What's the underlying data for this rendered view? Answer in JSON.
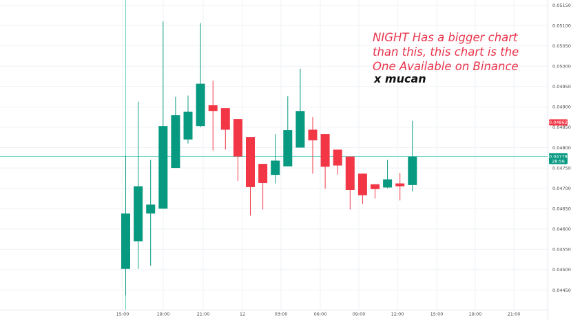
{
  "chart_data": {
    "type": "candlestick",
    "time_labels": [
      "15:00",
      "18:00",
      "21:00",
      "12",
      "03:00",
      "06:00",
      "09:00",
      "12:00",
      "15:00",
      "18:00",
      "21:00"
    ],
    "price_ticks": [
      "0.05150",
      "0.05100",
      "0.05050",
      "0.05000",
      "0.04950",
      "0.04900",
      "0.04850",
      "0.04800",
      "0.04750",
      "0.04700",
      "0.04650",
      "0.04600",
      "0.04550",
      "0.04500",
      "0.04450"
    ],
    "ylim": [
      0.04416,
      0.05164
    ],
    "candles": [
      {
        "o": 0.04502,
        "h": 0.0478,
        "l": 0.04437,
        "c": 0.04638
      },
      {
        "o": 0.0457,
        "h": 0.04913,
        "l": 0.04502,
        "c": 0.04705
      },
      {
        "o": 0.04638,
        "h": 0.0477,
        "l": 0.0451,
        "c": 0.0466
      },
      {
        "o": 0.0465,
        "h": 0.0511,
        "l": 0.0465,
        "c": 0.04853
      },
      {
        "o": 0.0475,
        "h": 0.04925,
        "l": 0.0475,
        "c": 0.0488
      },
      {
        "o": 0.0482,
        "h": 0.04928,
        "l": 0.0481,
        "c": 0.04888
      },
      {
        "o": 0.04853,
        "h": 0.05106,
        "l": 0.0485,
        "c": 0.04957
      },
      {
        "o": 0.04904,
        "h": 0.04964,
        "l": 0.04793,
        "c": 0.0489
      },
      {
        "o": 0.04897,
        "h": 0.04897,
        "l": 0.04795,
        "c": 0.04844
      },
      {
        "o": 0.0487,
        "h": 0.0487,
        "l": 0.04718,
        "c": 0.04778
      },
      {
        "o": 0.04826,
        "h": 0.04826,
        "l": 0.04633,
        "c": 0.04703
      },
      {
        "o": 0.0476,
        "h": 0.0476,
        "l": 0.04648,
        "c": 0.04713
      },
      {
        "o": 0.04733,
        "h": 0.04833,
        "l": 0.04712,
        "c": 0.04768
      },
      {
        "o": 0.04754,
        "h": 0.04926,
        "l": 0.04754,
        "c": 0.04843
      },
      {
        "o": 0.048,
        "h": 0.04994,
        "l": 0.048,
        "c": 0.0489
      },
      {
        "o": 0.04844,
        "h": 0.04875,
        "l": 0.04736,
        "c": 0.04818
      },
      {
        "o": 0.04833,
        "h": 0.04833,
        "l": 0.04699,
        "c": 0.04753
      },
      {
        "o": 0.04795,
        "h": 0.04795,
        "l": 0.04734,
        "c": 0.04756
      },
      {
        "o": 0.04778,
        "h": 0.04778,
        "l": 0.04648,
        "c": 0.04696
      },
      {
        "o": 0.04736,
        "h": 0.04736,
        "l": 0.04662,
        "c": 0.04683
      },
      {
        "o": 0.0471,
        "h": 0.0471,
        "l": 0.04675,
        "c": 0.04698
      },
      {
        "o": 0.04702,
        "h": 0.0477,
        "l": 0.047,
        "c": 0.04722
      },
      {
        "o": 0.04712,
        "h": 0.04738,
        "l": 0.0467,
        "c": 0.04705
      },
      {
        "o": 0.04708,
        "h": 0.04866,
        "l": 0.04692,
        "c": 0.04778
      }
    ],
    "tags": {
      "high_price": "0.04862",
      "last_price": "0.04778",
      "countdown": "28:56"
    },
    "crosshair_value": 0.04778,
    "grid": true,
    "colors": {
      "up": "#089981",
      "down": "#f23645",
      "grid": "#eef1f5",
      "crosshair": "#40c8b8",
      "axis_text": "#4a4a4a"
    }
  },
  "annotations": {
    "main": "NIGHT Has a bigger chart than this, this chart is the One Available on Binance",
    "signature": "x mucan"
  }
}
